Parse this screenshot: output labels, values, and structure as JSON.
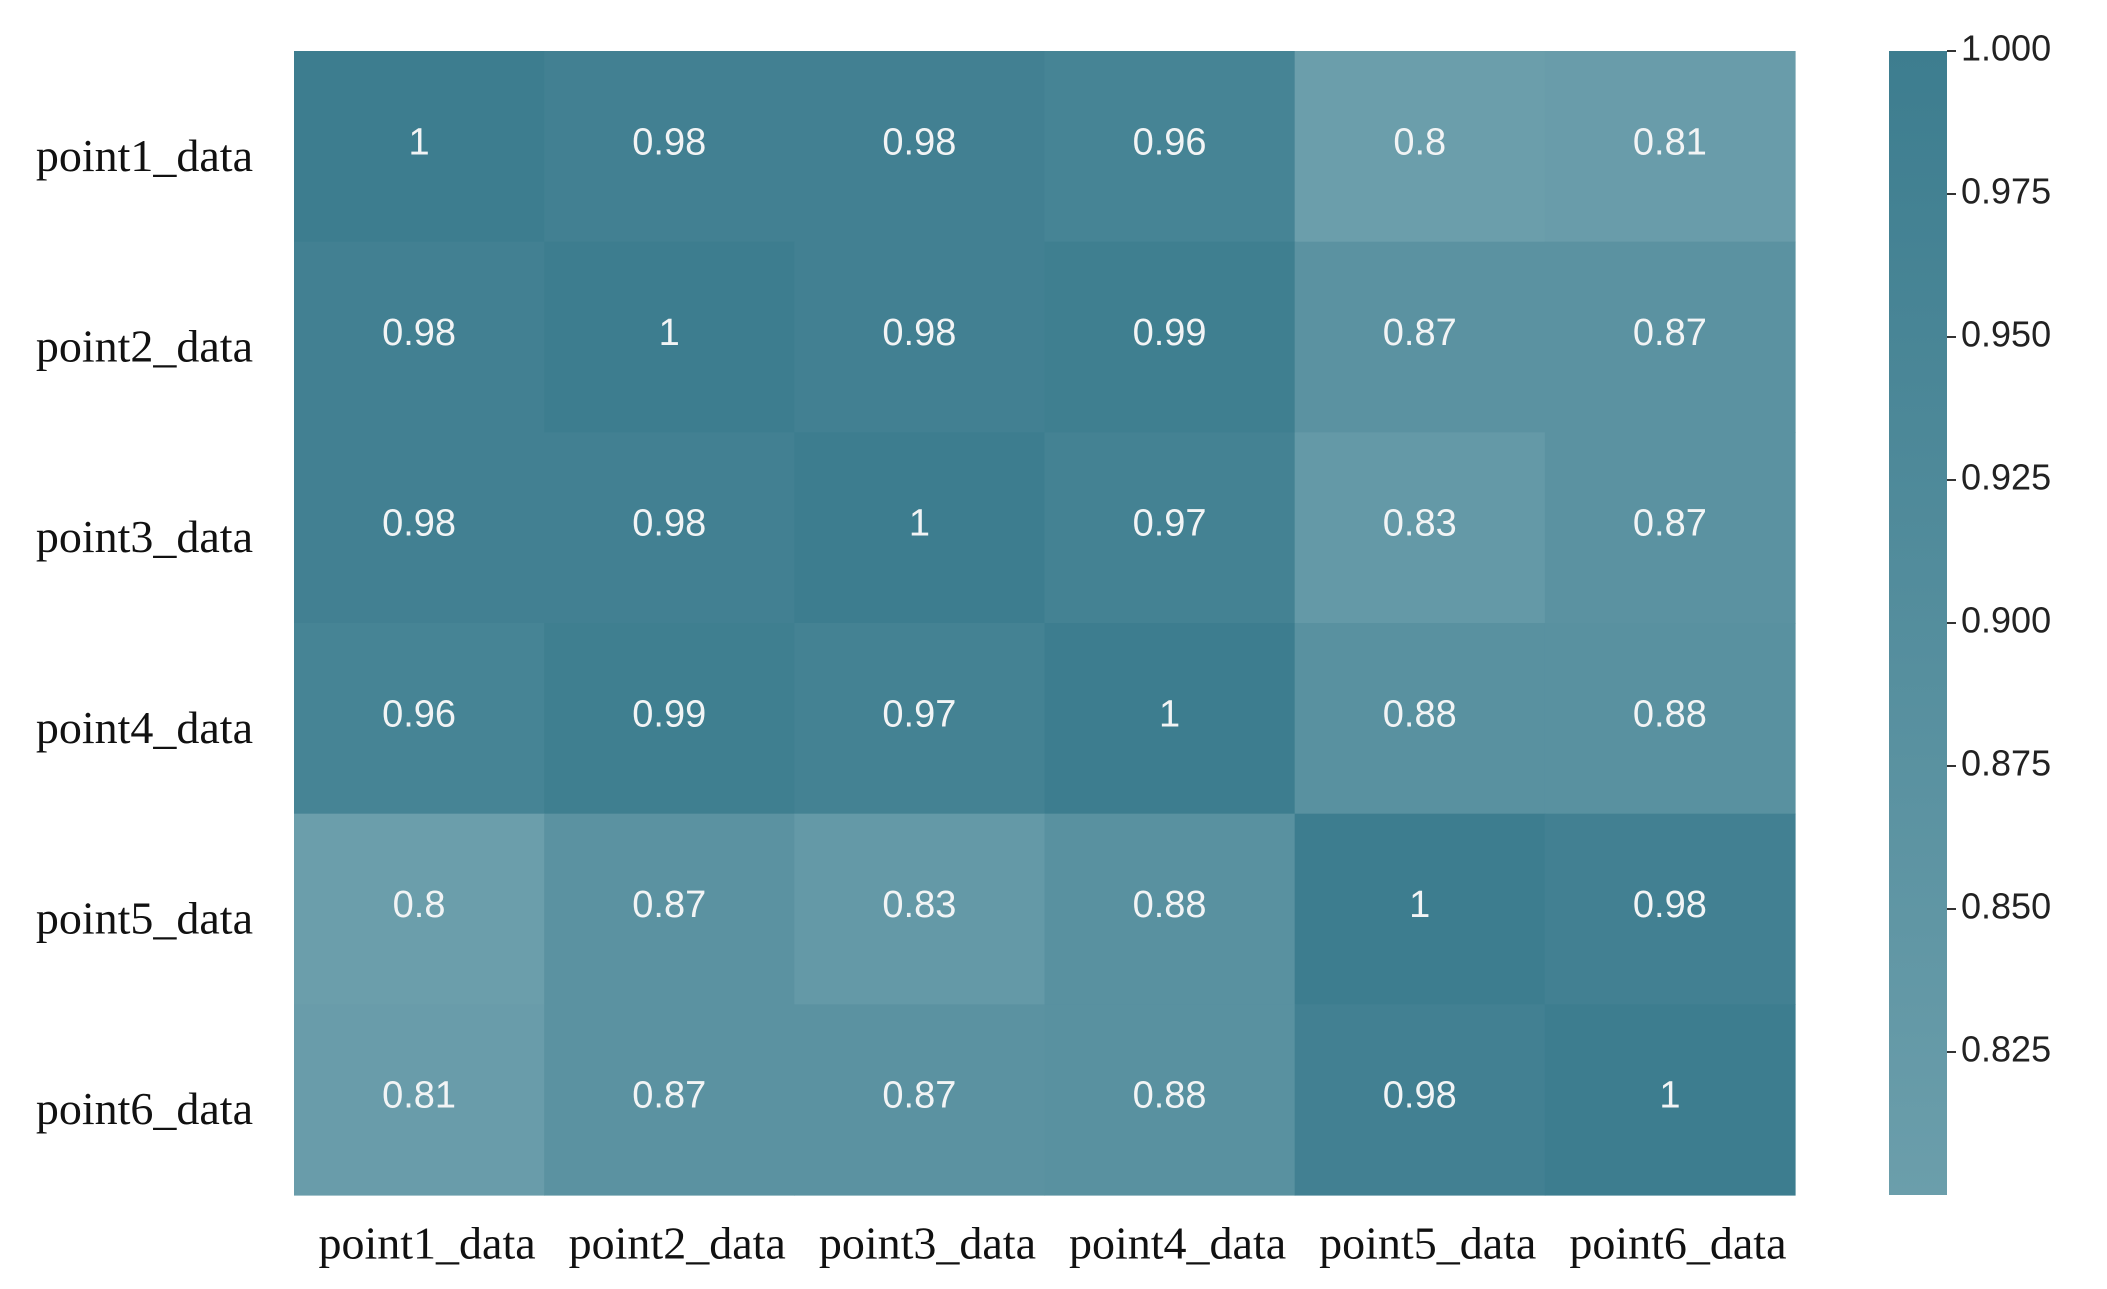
{
  "chart_data": {
    "type": "heatmap",
    "title": "",
    "xlabel": "",
    "ylabel": "",
    "x_categories": [
      "point1_data",
      "point2_data",
      "point3_data",
      "point4_data",
      "point5_data",
      "point6_data"
    ],
    "y_categories": [
      "point1_data",
      "point2_data",
      "point3_data",
      "point4_data",
      "point5_data",
      "point6_data"
    ],
    "values": [
      [
        1.0,
        0.98,
        0.98,
        0.96,
        0.8,
        0.81
      ],
      [
        0.98,
        1.0,
        0.98,
        0.99,
        0.87,
        0.87
      ],
      [
        0.98,
        0.98,
        1.0,
        0.97,
        0.83,
        0.87
      ],
      [
        0.96,
        0.99,
        0.97,
        1.0,
        0.88,
        0.88
      ],
      [
        0.8,
        0.87,
        0.83,
        0.88,
        1.0,
        0.98
      ],
      [
        0.81,
        0.87,
        0.87,
        0.88,
        0.98,
        1.0
      ]
    ],
    "cell_labels": [
      [
        "1",
        "0.98",
        "0.98",
        "0.96",
        "0.8",
        "0.81"
      ],
      [
        "0.98",
        "1",
        "0.98",
        "0.99",
        "0.87",
        "0.87"
      ],
      [
        "0.98",
        "0.98",
        "1",
        "0.97",
        "0.83",
        "0.87"
      ],
      [
        "0.96",
        "0.99",
        "0.97",
        "1",
        "0.88",
        "0.88"
      ],
      [
        "0.8",
        "0.87",
        "0.83",
        "0.88",
        "1",
        "0.98"
      ],
      [
        "0.81",
        "0.87",
        "0.87",
        "0.88",
        "0.98",
        "1"
      ]
    ],
    "colorbar": {
      "range": [
        0.8,
        1.0
      ],
      "ticks": [
        1.0,
        0.975,
        0.95,
        0.925,
        0.9,
        0.875,
        0.85,
        0.825
      ],
      "tick_labels": [
        "1.000",
        "0.975",
        "0.950",
        "0.925",
        "0.900",
        "0.875",
        "0.850",
        "0.825"
      ],
      "low_color": "#6b9eab",
      "high_color": "#3d7d8f"
    },
    "annotation_color": "#f2f4f5",
    "label_color": "#111111",
    "grid": false
  }
}
